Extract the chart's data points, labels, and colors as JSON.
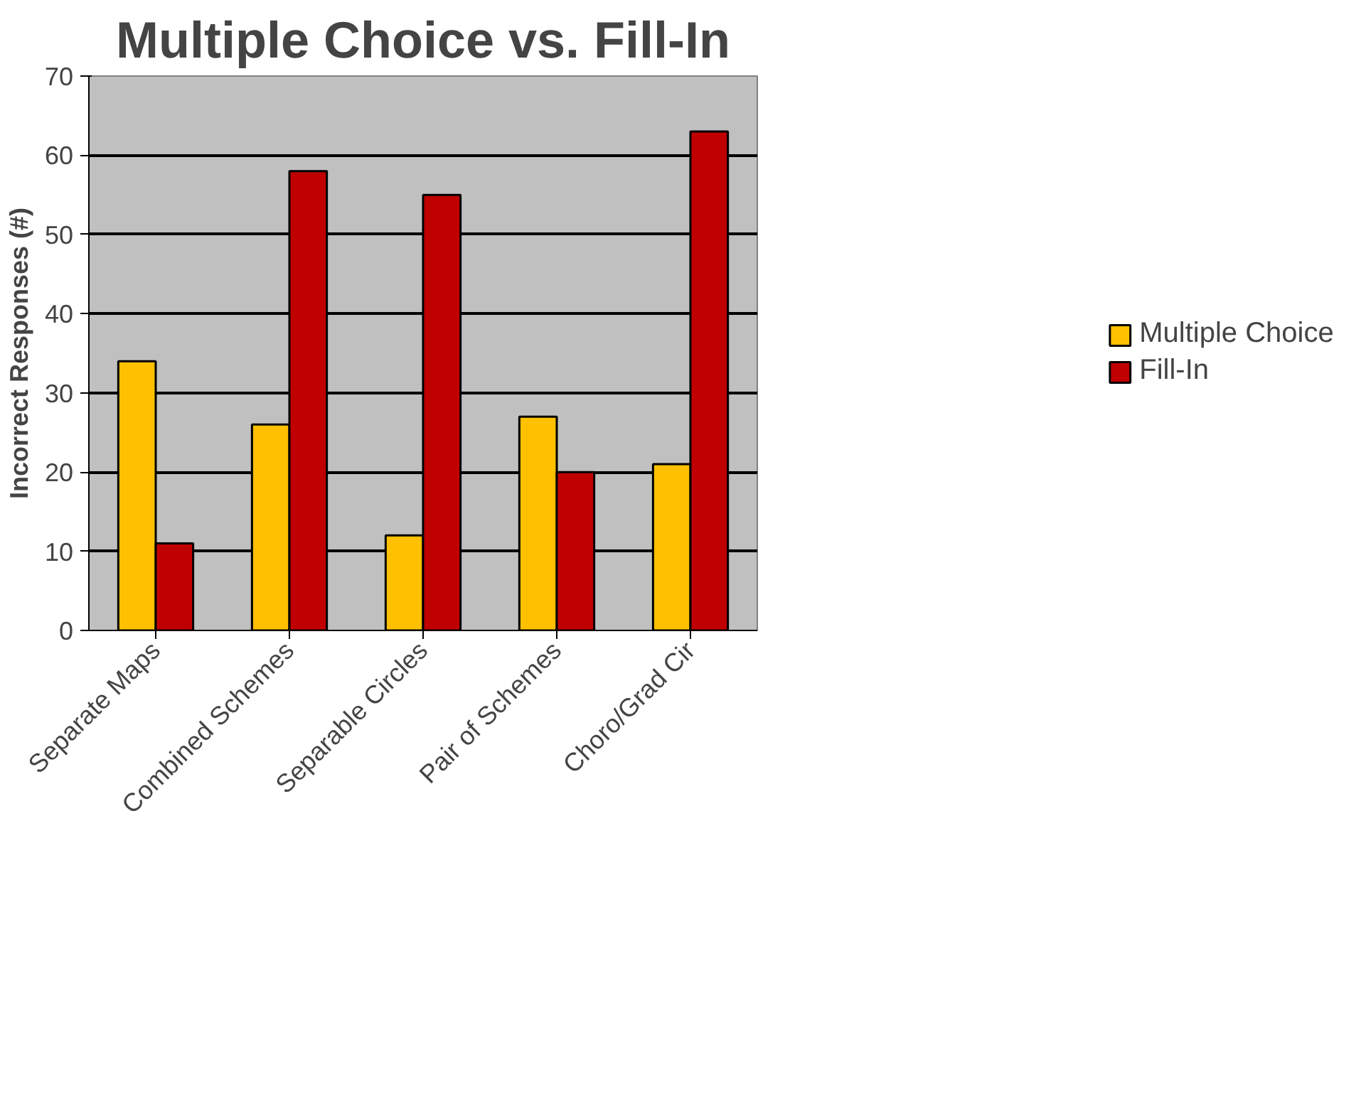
{
  "chart_data": {
    "type": "bar",
    "title": "Multiple Choice vs. Fill-In",
    "ylabel": "Incorrect Responses (#)",
    "categories": [
      "Separate Maps",
      "Combined Schemes",
      "Separable Circles",
      "Pair of Schemes",
      "Choro/Grad Cir"
    ],
    "series": [
      {
        "name": "Multiple Choice",
        "color": "#ffc000",
        "values": [
          34,
          26,
          12,
          27,
          21
        ]
      },
      {
        "name": "Fill-In",
        "color": "#c00000",
        "values": [
          11,
          58,
          55,
          20,
          63
        ]
      }
    ],
    "ylim": [
      0,
      70
    ],
    "yticks": [
      0,
      10,
      20,
      30,
      40,
      50,
      60,
      70
    ],
    "grid": "y",
    "legend": "right"
  }
}
